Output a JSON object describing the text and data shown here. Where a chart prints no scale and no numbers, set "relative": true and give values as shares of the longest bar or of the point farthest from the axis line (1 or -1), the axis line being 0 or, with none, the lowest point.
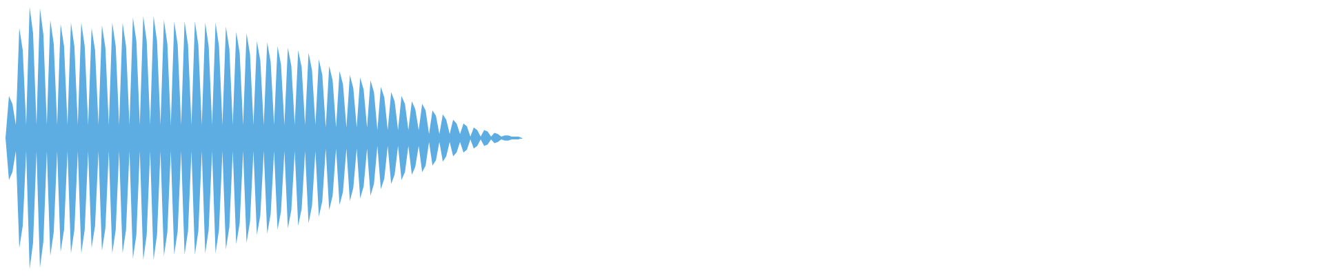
{
  "chart_data": {
    "type": "area",
    "relative": true,
    "grid": false,
    "categories": [
      null,
      null,
      null,
      null,
      null,
      null,
      null,
      null,
      null,
      null,
      null,
      null,
      null,
      null,
      null,
      null,
      null,
      null,
      null,
      null,
      null,
      null,
      null,
      null,
      null,
      null,
      null,
      null,
      null,
      null,
      null,
      null,
      null,
      null,
      null,
      null,
      null,
      null,
      null,
      null,
      null,
      null,
      null,
      null,
      null,
      null,
      null,
      null,
      null,
      null,
      null,
      null,
      null,
      null,
      null,
      null,
      null,
      null,
      null,
      null,
      null,
      null,
      null,
      null,
      null,
      null,
      null,
      null,
      null,
      null,
      null,
      null,
      null,
      null,
      null,
      null,
      null,
      null,
      null,
      null,
      null,
      null,
      null,
      null,
      null,
      null,
      null,
      null,
      null,
      null,
      null,
      null,
      null,
      null,
      null,
      null,
      null,
      null,
      null,
      null,
      null,
      null,
      null,
      null,
      null,
      null,
      null,
      null,
      null,
      null,
      null,
      null,
      null,
      null,
      null,
      null,
      null,
      null,
      null,
      null,
      null,
      null,
      null,
      null,
      null,
      null,
      null,
      null,
      null,
      null,
      null,
      null,
      null,
      null,
      null,
      null,
      null,
      null,
      null,
      null,
      null,
      null,
      null,
      null,
      null,
      null,
      null,
      null,
      null,
      null,
      null
    ],
    "series": [
      {
        "color": "#5dade2",
        "values": [
          0,
          0.32,
          0.26,
          0.1,
          0.84,
          0.67,
          0.1,
          1,
          0.8,
          0.1,
          0.99,
          0.79,
          0.1,
          0.9,
          0.72,
          0.1,
          0.87,
          0.7,
          0.1,
          0.88,
          0.7,
          0.1,
          0.88,
          0.7,
          0.1,
          0.84,
          0.67,
          0.1,
          0.86,
          0.69,
          0.1,
          0.88,
          0.7,
          0.1,
          0.88,
          0.7,
          0.1,
          0.92,
          0.74,
          0.1,
          0.93,
          0.74,
          0.1,
          0.93,
          0.74,
          0.1,
          0.9,
          0.72,
          0.1,
          0.89,
          0.71,
          0.1,
          0.89,
          0.71,
          0.1,
          0.89,
          0.71,
          0.1,
          0.88,
          0.7,
          0.1,
          0.88,
          0.7,
          0.1,
          0.85,
          0.68,
          0.1,
          0.81,
          0.65,
          0.1,
          0.8,
          0.64,
          0.1,
          0.74,
          0.59,
          0.1,
          0.73,
          0.58,
          0.1,
          0.7,
          0.56,
          0.1,
          0.69,
          0.55,
          0.1,
          0.67,
          0.54,
          0.1,
          0.65,
          0.52,
          0.1,
          0.6,
          0.48,
          0.08,
          0.55,
          0.44,
          0.08,
          0.51,
          0.41,
          0.08,
          0.48,
          0.38,
          0.08,
          0.46,
          0.37,
          0.08,
          0.44,
          0.35,
          0.06,
          0.39,
          0.31,
          0.06,
          0.35,
          0.28,
          0.06,
          0.32,
          0.26,
          0.06,
          0.28,
          0.22,
          0.06,
          0.26,
          0.21,
          0.03,
          0.21,
          0.17,
          0.03,
          0.18,
          0.14,
          0.03,
          0.14,
          0.11,
          0.03,
          0.11,
          0.09,
          0.01,
          0.08,
          0.06,
          0.01,
          0.06,
          0.05,
          0.01,
          0.04,
          0.03,
          0.01,
          0.02,
          0.02,
          0.01,
          0.01,
          0.01,
          0
        ]
      },
      {
        "color": "#5dade2",
        "values": [
          0,
          -0.32,
          -0.26,
          -0.1,
          -0.84,
          -0.67,
          -0.1,
          -1,
          -0.8,
          -0.1,
          -0.99,
          -0.79,
          -0.1,
          -0.9,
          -0.72,
          -0.1,
          -0.87,
          -0.7,
          -0.1,
          -0.88,
          -0.7,
          -0.1,
          -0.88,
          -0.7,
          -0.1,
          -0.84,
          -0.67,
          -0.1,
          -0.86,
          -0.69,
          -0.1,
          -0.88,
          -0.7,
          -0.1,
          -0.88,
          -0.7,
          -0.1,
          -0.92,
          -0.74,
          -0.1,
          -0.93,
          -0.74,
          -0.1,
          -0.93,
          -0.74,
          -0.1,
          -0.9,
          -0.72,
          -0.1,
          -0.89,
          -0.71,
          -0.1,
          -0.89,
          -0.71,
          -0.1,
          -0.89,
          -0.71,
          -0.1,
          -0.88,
          -0.7,
          -0.1,
          -0.88,
          -0.7,
          -0.1,
          -0.85,
          -0.68,
          -0.1,
          -0.81,
          -0.65,
          -0.1,
          -0.8,
          -0.64,
          -0.1,
          -0.74,
          -0.59,
          -0.1,
          -0.73,
          -0.58,
          -0.1,
          -0.7,
          -0.56,
          -0.1,
          -0.69,
          -0.55,
          -0.1,
          -0.67,
          -0.54,
          -0.1,
          -0.65,
          -0.52,
          -0.1,
          -0.6,
          -0.48,
          -0.08,
          -0.55,
          -0.44,
          -0.08,
          -0.51,
          -0.41,
          -0.08,
          -0.48,
          -0.38,
          -0.08,
          -0.46,
          -0.37,
          -0.08,
          -0.44,
          -0.35,
          -0.06,
          -0.39,
          -0.31,
          -0.06,
          -0.35,
          -0.28,
          -0.06,
          -0.32,
          -0.26,
          -0.06,
          -0.28,
          -0.22,
          -0.06,
          -0.26,
          -0.21,
          -0.03,
          -0.21,
          -0.17,
          -0.03,
          -0.18,
          -0.14,
          -0.03,
          -0.14,
          -0.11,
          -0.03,
          -0.11,
          -0.09,
          -0.01,
          -0.08,
          -0.06,
          -0.01,
          -0.06,
          -0.05,
          -0.01,
          -0.04,
          -0.03,
          -0.01,
          -0.02,
          -0.02,
          -0.01,
          -0.01,
          -0.01,
          0
        ]
      }
    ]
  }
}
